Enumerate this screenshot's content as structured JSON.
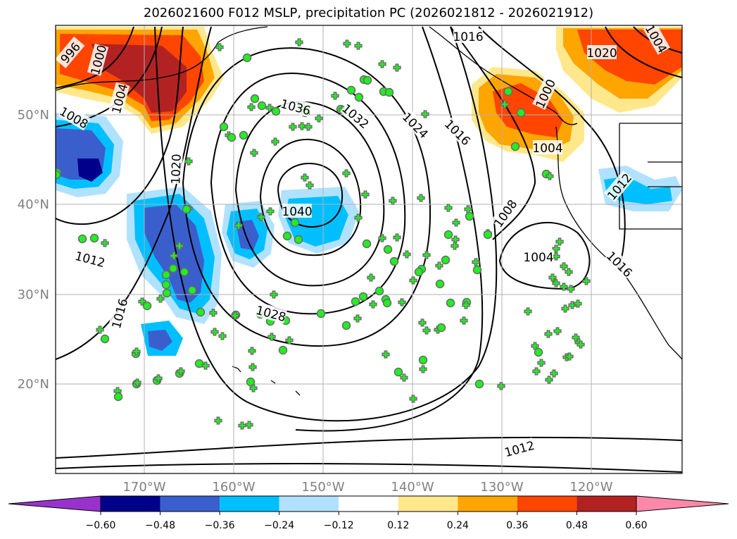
{
  "title": "2026021600 F012 MSLP, precipitation PC (2026021812 - 2026021912)",
  "lat_labels": [
    "50°N",
    "40°N",
    "30°N",
    "20°N"
  ],
  "lon_labels": [
    "170°W",
    "160°W",
    "150°W",
    "140°W",
    "130°W",
    "120°W"
  ],
  "contour_labels": [
    "996",
    "1000",
    "1004",
    "1008",
    "1012",
    "1016",
    "1020",
    "1028",
    "1036",
    "1032",
    "1040",
    "1024",
    "1016",
    "1008",
    "1004",
    "1000",
    "1016",
    "1020",
    "1004",
    "1004",
    "1012",
    "1016",
    "1012"
  ],
  "colorbar": {
    "ticks": [
      "−0.60",
      "−0.48",
      "−0.36",
      "−0.24",
      "−0.12",
      "0.12",
      "0.24",
      "0.36",
      "0.48",
      "0.60"
    ],
    "colors": [
      "#9932cc",
      "#00008b",
      "#3a5fcd",
      "#00bfff",
      "#b0e2ff",
      "#ffffff",
      "#ffe88c",
      "#ffa500",
      "#ff4500",
      "#b22222",
      "#ff88aa"
    ]
  },
  "colors": {
    "land_outline": "#000000",
    "grid": "#b0b0b0",
    "marker_fill": "#22ee22",
    "marker_edge": "#6a6a6a"
  }
}
